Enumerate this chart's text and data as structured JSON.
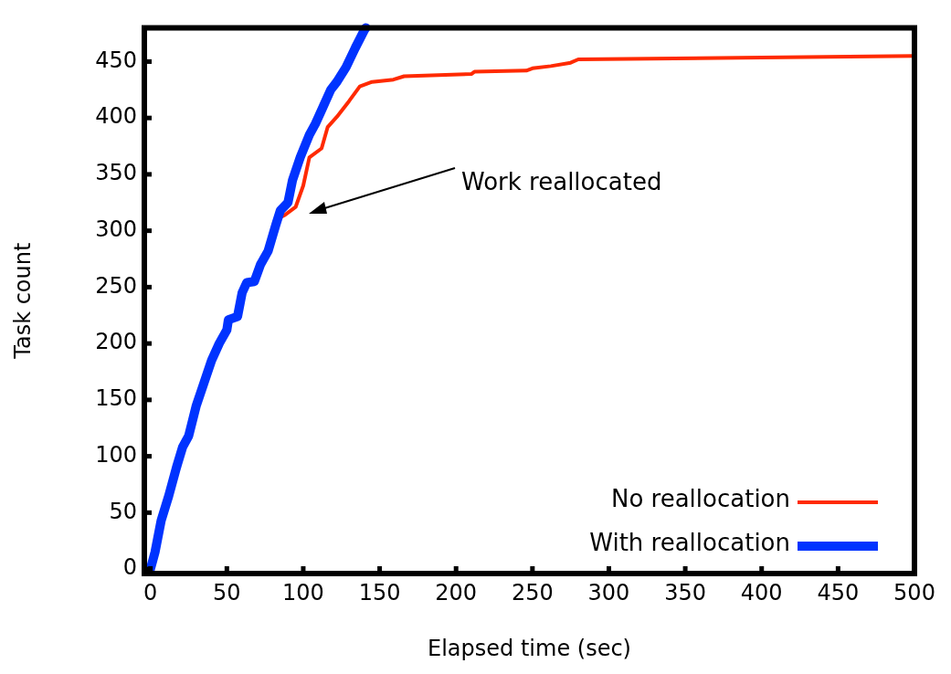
{
  "chart_data": {
    "type": "line",
    "xlabel": "Elapsed time (sec)",
    "ylabel": "Task count",
    "xlim": [
      -4,
      500
    ],
    "ylim": [
      -4,
      480
    ],
    "xticks": [
      0,
      50,
      100,
      150,
      200,
      250,
      300,
      350,
      400,
      450,
      500
    ],
    "yticks": [
      0,
      50,
      100,
      150,
      200,
      250,
      300,
      350,
      400,
      450
    ],
    "grid": false,
    "legend": "bottom right",
    "marker": "none",
    "line_style": "solid",
    "annotations": [
      "Work reallocated"
    ],
    "series": [
      {
        "name": "No reallocation",
        "color": "#ff2a00",
        "x": [
          85,
          88,
          95,
          100,
          104,
          112,
          116,
          122,
          130,
          137,
          145,
          159,
          166,
          210,
          212,
          246,
          250,
          262,
          275,
          280,
          500
        ],
        "values": [
          312,
          314,
          321,
          340,
          365,
          373,
          392,
          401,
          415,
          428,
          432,
          434,
          437,
          439,
          441,
          442,
          444,
          446,
          449,
          452,
          455
        ]
      },
      {
        "name": "With reallocation",
        "color": "#0033ff",
        "x": [
          0,
          3,
          7,
          12,
          17,
          21,
          25,
          30,
          35,
          40,
          45,
          50,
          51,
          57,
          60,
          63,
          68,
          72,
          77,
          82,
          85,
          90,
          93,
          98,
          104,
          108,
          113,
          118,
          122,
          128,
          134,
          140,
          141
        ],
        "values": [
          0,
          15,
          43,
          65,
          90,
          108,
          118,
          145,
          165,
          185,
          200,
          212,
          221,
          224,
          245,
          254,
          255,
          270,
          282,
          305,
          318,
          325,
          345,
          365,
          385,
          395,
          410,
          425,
          432,
          445,
          462,
          478,
          480
        ]
      }
    ]
  }
}
